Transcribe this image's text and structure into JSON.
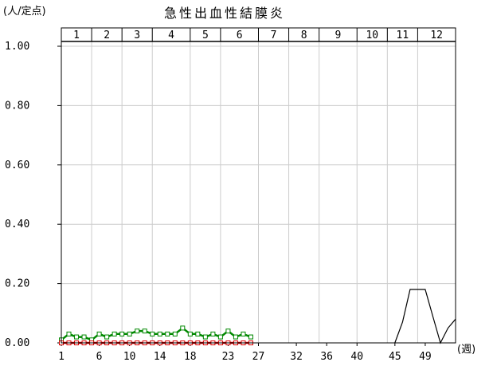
{
  "chart_data": {
    "type": "line",
    "title": "急性出血性結膜炎",
    "ylabel": "(人/定点)",
    "xlabel": "(週)",
    "ylim": [
      0,
      1.0
    ],
    "xlim": [
      1,
      53
    ],
    "y_ticks": [
      "0.00",
      "0.20",
      "0.40",
      "0.60",
      "0.80",
      "1.00"
    ],
    "y_tick_values": [
      0,
      0.2,
      0.4,
      0.6,
      0.8,
      1.0
    ],
    "x_ticks": [
      "1",
      "6",
      "10",
      "14",
      "18",
      "23",
      "27",
      "32",
      "36",
      "40",
      "45",
      "49"
    ],
    "x_tick_values": [
      1,
      6,
      10,
      14,
      18,
      23,
      27,
      32,
      36,
      40,
      45,
      49
    ],
    "months": [
      "1",
      "2",
      "3",
      "4",
      "5",
      "6",
      "7",
      "8",
      "9",
      "10",
      "11",
      "12"
    ],
    "month_start_weeks": [
      1,
      5,
      9,
      13,
      18,
      22,
      27,
      31,
      35,
      40,
      44,
      48,
      53
    ],
    "grid": true,
    "colors": {
      "black": "#000000",
      "green": "#008800",
      "red": "#dd0000",
      "grid": "#cccccc"
    },
    "series": [
      {
        "color": "#000000",
        "x": [
          45,
          46,
          47,
          48,
          49,
          50,
          51,
          52,
          53
        ],
        "values": [
          0.0,
          0.07,
          0.18,
          0.18,
          0.18,
          0.09,
          0.0,
          0.05,
          0.08
        ]
      },
      {
        "color": "#008800",
        "x": [
          1,
          2,
          3,
          4,
          5,
          6,
          7,
          8,
          9,
          10,
          11,
          12,
          13,
          14,
          15,
          16,
          17,
          18,
          19,
          20,
          21,
          22,
          23,
          24,
          25,
          26
        ],
        "values": [
          0.01,
          0.03,
          0.02,
          0.02,
          0.01,
          0.03,
          0.02,
          0.03,
          0.03,
          0.03,
          0.04,
          0.04,
          0.03,
          0.03,
          0.03,
          0.03,
          0.05,
          0.03,
          0.03,
          0.02,
          0.03,
          0.02,
          0.04,
          0.02,
          0.03,
          0.02
        ]
      },
      {
        "color": "#dd0000",
        "x": [
          1,
          2,
          3,
          4,
          5,
          6,
          7,
          8,
          9,
          10,
          11,
          12,
          13,
          14,
          15,
          16,
          17,
          18,
          19,
          20,
          21,
          22,
          23,
          24,
          25,
          26
        ],
        "values": [
          0.0,
          0.0,
          0.0,
          0.0,
          0.0,
          0.0,
          0.0,
          0.0,
          0.0,
          0.0,
          0.0,
          0.0,
          0.0,
          0.0,
          0.0,
          0.0,
          0.0,
          0.0,
          0.0,
          0.0,
          0.0,
          0.0,
          0.0,
          0.0,
          0.0,
          0.0
        ]
      }
    ]
  }
}
